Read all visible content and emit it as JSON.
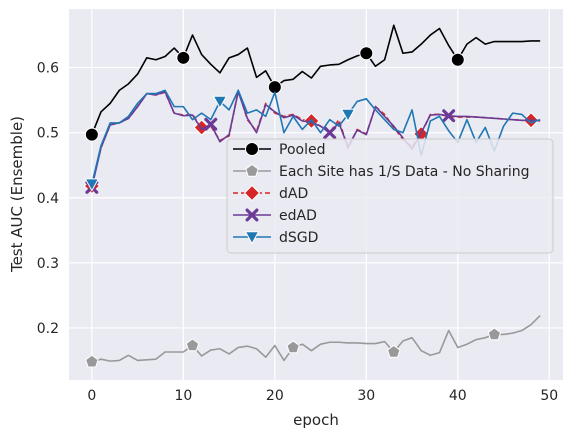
{
  "chart_data": {
    "type": "line",
    "xlabel": "epoch",
    "ylabel": "Test AUC (Ensemble)",
    "xlim": [
      -2.5,
      51.5
    ],
    "ylim": [
      0.12,
      0.69
    ],
    "xticks": [
      0,
      10,
      20,
      30,
      40,
      50
    ],
    "yticks": [
      0.2,
      0.3,
      0.4,
      0.5,
      0.6
    ],
    "xtick_labels": [
      "0",
      "10",
      "20",
      "30",
      "40",
      "50"
    ],
    "ytick_labels": [
      "0.2",
      "0.3",
      "0.4",
      "0.5",
      "0.6"
    ],
    "grid": true,
    "legend_position": "right",
    "background": "#eaeaf2",
    "series": [
      {
        "name": "Pooled",
        "color": "#000000",
        "marker": "circle",
        "marker_every": [
          0,
          10,
          20,
          30,
          40
        ],
        "values": [
          0.497,
          0.532,
          0.545,
          0.565,
          0.575,
          0.59,
          0.615,
          0.612,
          0.617,
          0.63,
          0.615,
          0.65,
          0.62,
          0.605,
          0.592,
          0.615,
          0.62,
          0.63,
          0.585,
          0.595,
          0.57,
          0.58,
          0.582,
          0.594,
          0.584,
          0.602,
          0.604,
          0.605,
          0.612,
          0.618,
          0.622,
          0.602,
          0.612,
          0.665,
          0.622,
          0.624,
          0.636,
          0.65,
          0.66,
          0.634,
          0.612,
          0.636,
          0.646,
          0.636,
          0.64,
          0.64,
          0.64,
          0.64,
          0.641,
          0.641
        ]
      },
      {
        "name": "Each Site has 1/S Data - No Sharing",
        "color": "#999999",
        "marker": "pentagon",
        "marker_every": [
          0,
          11,
          22,
          33,
          44
        ],
        "values": [
          0.148,
          0.152,
          0.149,
          0.15,
          0.158,
          0.15,
          0.151,
          0.152,
          0.163,
          0.163,
          0.163,
          0.173,
          0.157,
          0.166,
          0.168,
          0.16,
          0.17,
          0.172,
          0.168,
          0.155,
          0.173,
          0.15,
          0.17,
          0.175,
          0.165,
          0.175,
          0.178,
          0.178,
          0.177,
          0.177,
          0.176,
          0.176,
          0.179,
          0.163,
          0.18,
          0.185,
          0.165,
          0.158,
          0.162,
          0.196,
          0.17,
          0.175,
          0.182,
          0.185,
          0.19,
          0.19,
          0.192,
          0.196,
          0.205,
          0.219
        ]
      },
      {
        "name": "dAD",
        "color": "#d62728",
        "marker": "diamond",
        "dashed": true,
        "marker_every": [
          0,
          12,
          24,
          36,
          48
        ],
        "values": [
          0.418,
          0.477,
          0.512,
          0.515,
          0.522,
          0.54,
          0.56,
          0.558,
          0.562,
          0.53,
          0.527,
          0.528,
          0.508,
          0.51,
          0.488,
          0.495,
          0.565,
          0.52,
          0.502,
          0.545,
          0.53,
          0.525,
          0.528,
          0.52,
          0.518,
          0.51,
          0.5,
          0.52,
          0.476,
          0.505,
          0.498,
          0.54,
          0.528,
          0.508,
          0.49,
          0.478,
          0.498,
          0.528,
          0.528,
          0.525,
          0.524,
          0.524,
          0.524,
          0.523,
          0.522,
          0.521,
          0.52,
          0.519,
          0.519,
          0.518
        ]
      },
      {
        "name": "edAD",
        "color": "#6b3a96",
        "marker": "x",
        "marker_every": [
          0,
          13,
          26,
          39
        ],
        "values": [
          0.416,
          0.477,
          0.512,
          0.515,
          0.522,
          0.54,
          0.56,
          0.558,
          0.563,
          0.53,
          0.526,
          0.527,
          0.505,
          0.513,
          0.486,
          0.497,
          0.563,
          0.522,
          0.5,
          0.543,
          0.532,
          0.523,
          0.527,
          0.518,
          0.516,
          0.51,
          0.5,
          0.515,
          0.478,
          0.504,
          0.497,
          0.54,
          0.525,
          0.51,
          0.492,
          0.475,
          0.5,
          0.527,
          0.528,
          0.526,
          0.525,
          0.525,
          0.524,
          0.523,
          0.522,
          0.521,
          0.52,
          0.519,
          0.519,
          0.519
        ]
      },
      {
        "name": "dSGD",
        "color": "#1f77b4",
        "marker": "triangle-down",
        "marker_every": [
          0,
          14,
          28
        ],
        "values": [
          0.421,
          0.48,
          0.515,
          0.515,
          0.525,
          0.545,
          0.56,
          0.56,
          0.565,
          0.54,
          0.54,
          0.52,
          0.53,
          0.52,
          0.548,
          0.535,
          0.565,
          0.53,
          0.535,
          0.525,
          0.562,
          0.5,
          0.525,
          0.505,
          0.52,
          0.5,
          0.52,
          0.51,
          0.528,
          0.548,
          0.552,
          0.535,
          0.52,
          0.505,
          0.5,
          0.535,
          0.465,
          0.518,
          0.525,
          0.503,
          0.485,
          0.52,
          0.485,
          0.508,
          0.472,
          0.51,
          0.53,
          0.528,
          0.515,
          0.52
        ]
      }
    ]
  }
}
